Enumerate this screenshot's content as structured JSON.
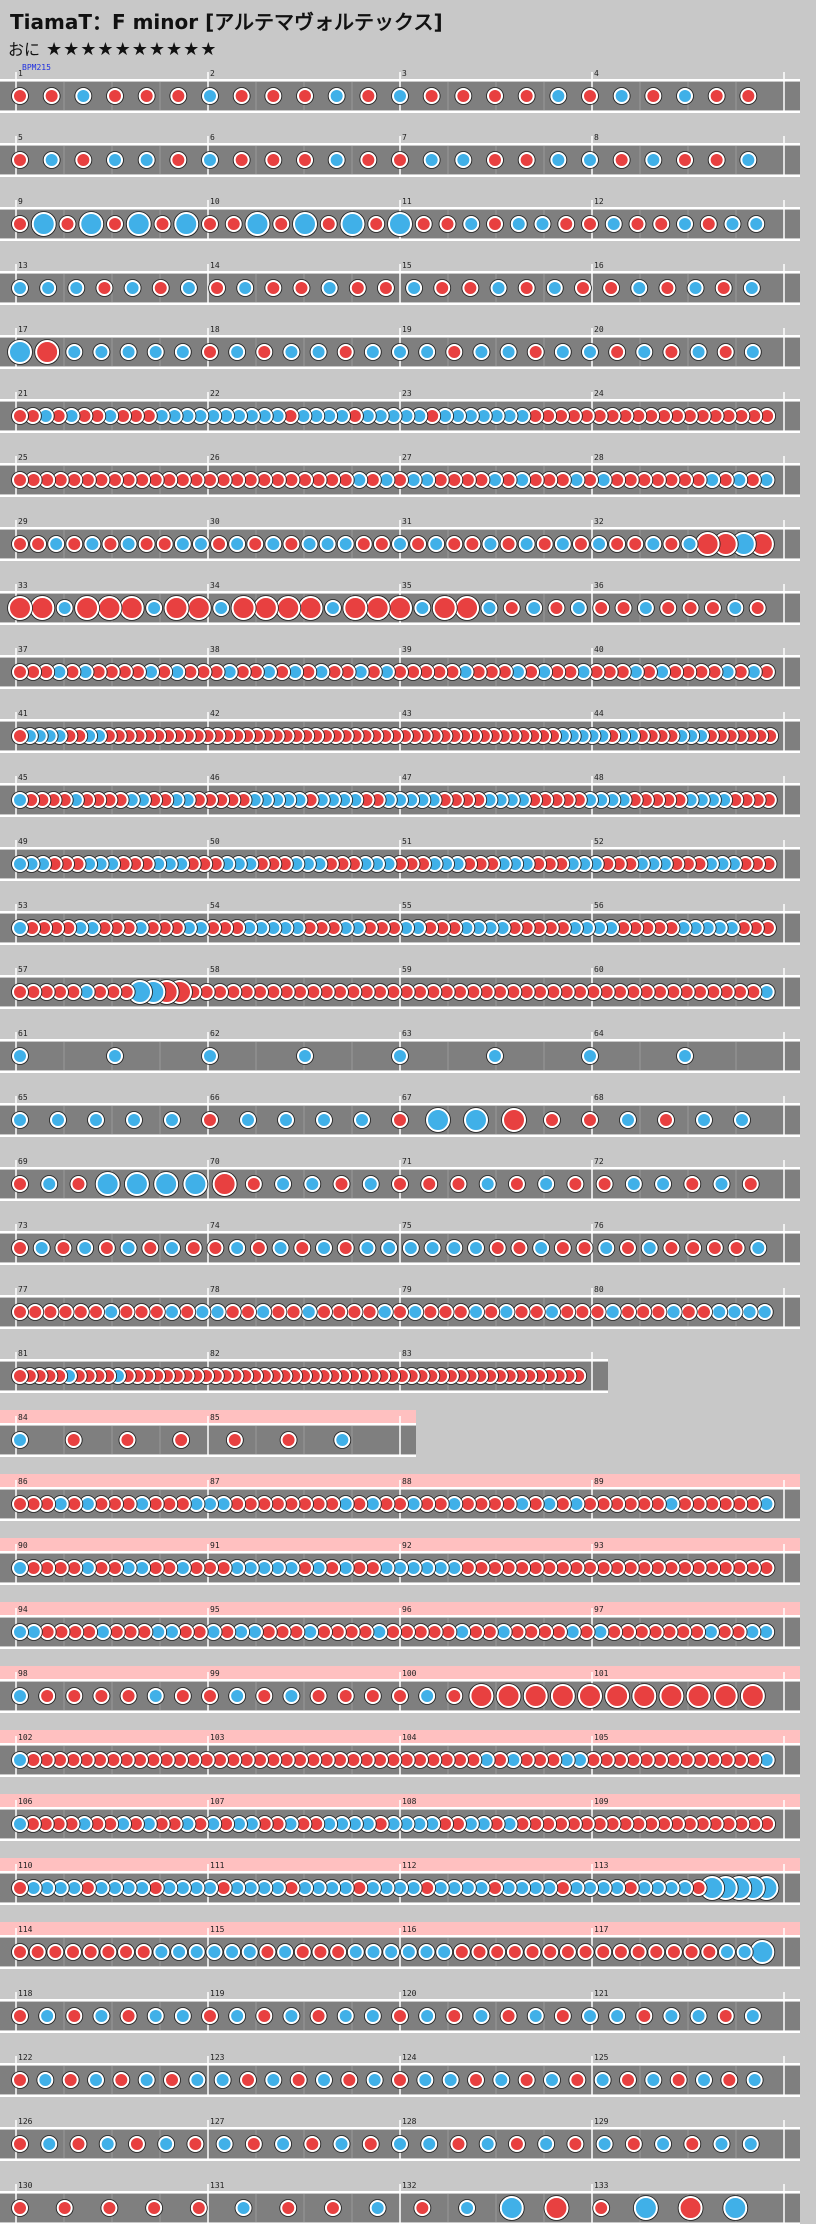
{
  "title": "TiamaT：F minor [アルテマヴォルテックス]",
  "difficulty": {
    "label": "おに",
    "stars": "★★★★★★★★★★"
  },
  "bpm_label": "BPM215",
  "colors": {
    "don": "#e84040",
    "ka": "#40b0e8",
    "lane": "#7f7f7f",
    "gogo": "#ffc0c0",
    "bg": "#c8c8c8"
  },
  "rows": [
    {
      "notes": "r r b r r r b r r r b r b r r r r b r b r b r r",
      "measure_numbers": [
        1,
        2,
        3,
        4
      ]
    },
    {
      "notes": "r b r b b r b r r r b r r b b r r b b r b r r b",
      "measure_numbers": [
        5,
        6,
        7,
        8
      ]
    },
    {
      "notes": "r B r B r B r B r r B r B r B r B r r b r b b r r b r r b r b b",
      "measure_numbers": [
        9,
        10,
        11,
        12
      ]
    },
    {
      "notes": "b b b r b r b r b r r b r r b r r b r b r r b r b r b",
      "measure_numbers": [
        13,
        14,
        15,
        16
      ]
    },
    {
      "notes": "B R b b b b b r b r b b r b b b r b b r b b r b r b r b",
      "measure_numbers": [
        17,
        18,
        19,
        20
      ]
    },
    {
      "notes": "r r b r b r r b r r r b b b b b b b b b b r b b b b r b b b b b r b b b b b b b r r r r r r r r r r r r r r r r r r r",
      "measure_numbers": [
        21,
        22,
        23,
        24
      ]
    },
    {
      "notes": "r r r r r r r r r r r r r r r r r r r r r r r r r b r b r b b r r r r b r b r r r b r b r r r r r r r b r b r b",
      "measure_numbers": [
        25,
        26,
        27,
        28
      ]
    },
    {
      "notes": "r r b r b r b r r b b r b r b r b b b r r b r b r r b r b r b r b r r b r b R R B R",
      "measure_numbers": [
        29,
        30,
        31,
        32
      ]
    },
    {
      "notes": "R R b R R R b R R b R R R R b R R R b R R b r b r b r r b r r r b r",
      "measure_numbers": [
        33,
        34,
        35,
        36
      ]
    },
    {
      "notes": "r r r b r b r r r r b r b r r r b r r b r b r b r r b r b r r r r r b r r r b r b r r b r r r b r b r r r r b r b r",
      "measure_numbers": [
        37,
        38,
        39,
        40
      ]
    },
    {
      "notes": "r b b b b r r b b r r r r r r r r r r r r r r r r r r r r r r r r r r r r r r r r r r r r r r r r r r r r r r b b b b b r b b r r r r b b b r r r r r r r",
      "measure_numbers": [
        41,
        42,
        43,
        44
      ]
    },
    {
      "notes": "b r r r r b r r r r b b r r b b r r r r r b b b b b r b b b b r r b b b b b r r r r b b b b r r r r r b b b b r r r r r b b b b r r r r",
      "measure_numbers": [
        45,
        46,
        47,
        48
      ]
    },
    {
      "notes": "b b b r r r b b b r r r b b b r r r b b b r r r b b b r r r b b b r r r b b b r r r b b b r r r b b b r r r b b b r r r b b b r r r",
      "measure_numbers": [
        49,
        50,
        51,
        52
      ]
    },
    {
      "notes": "b r r r r b b r r r b r r r b b r r r b b b b b r r r b b r r r b b r r r b b b b r r r r r b b b b r r r r r b b b b b r r r",
      "measure_numbers": [
        53,
        54,
        55,
        56
      ]
    },
    {
      "notes": "r r r r r b r r r B B R R r r r r r r r r r r r r r r r r r r r r r r r r r r r r r r r r r r r r r r r r r r r b",
      "measure_numbers": [
        57,
        58,
        59,
        60
      ]
    },
    {
      "notes": "b b b b b b b b",
      "measure_numbers": [
        61,
        62,
        63,
        64
      ]
    },
    {
      "notes": "b b b b b r b b b b r B B R r r b r b b",
      "measure_numbers": [
        65,
        66,
        67,
        68
      ]
    },
    {
      "notes": "r b r B B B B R r b b r b r r r b r b r r b b r b r",
      "measure_numbers": [
        69,
        70,
        71,
        72
      ]
    },
    {
      "notes": "r b r b r b r b r r b r b r b r b b b b b b r r b r r b r b r r r r b",
      "measure_numbers": [
        73,
        74,
        75,
        76
      ]
    },
    {
      "notes": "r r r r r r b r r r b r b b r r b r r b r r r r b r b r r r b r b r r b r r r b r r r b r r b b b b",
      "measure_numbers": [
        77,
        78,
        79,
        80
      ]
    },
    {
      "notes": "r r r r r b r r r r b r r r r r r r r r r r r r r r r r r r r r r r r r r r r r r r r r r r r r r r r r r r r r r r",
      "measure_numbers": [
        81,
        82,
        83
      ]
    },
    {
      "notes": "b r r r r r b",
      "measure_numbers": [
        84,
        85
      ],
      "gogo": true
    },
    {
      "notes": "r r r b r b r r r b r r r b b b r r r r r r r r b r b r r b r r b r r r r b r b r b r r r r r r b r r r r r r b",
      "measure_numbers": [
        86,
        87,
        88,
        89
      ],
      "gogo": true
    },
    {
      "notes": "b r r r r b r r b b r r b r r r b b b b b r b r b r r b b b b b b r r r r r r r r r r r r r r r r r r r r r r r",
      "measure_numbers": [
        90,
        91,
        92,
        93
      ],
      "gogo": true
    },
    {
      "notes": "b b r r r r b r r r b b r r b r b b r r r b r r r r b r r r r r b r r b r r r r b r b r r r r r r r b r r b b",
      "measure_numbers": [
        94,
        95,
        96,
        97
      ],
      "gogo": true
    },
    {
      "notes": "b r r r r b r r b r b r r r r b r R R R R R R R R R R R",
      "measure_numbers": [
        98,
        99,
        100,
        101
      ],
      "gogo": true
    },
    {
      "notes": "b r r r r r r r r r r r r r r r r r r r r r r r r r r r r r r r r r r b r b r r r b b r r r r r r r r r r r r r b",
      "measure_numbers": [
        102,
        103,
        104,
        105
      ],
      "gogo": true
    },
    {
      "notes": "b r r r r b r r b r b r r b r b r b b r r b r r b b b b r b b b b r r b b r b r r r r r r r r r r r r r r r r r r r r",
      "measure_numbers": [
        106,
        107,
        108,
        109
      ],
      "gogo": true
    },
    {
      "notes": "r b b b b r b b b b r b b b b r b b b b r b b b b r b b b b r b b b b r b b b b r b b b b r b b b b r B B B B B",
      "measure_numbers": [
        110,
        111,
        112,
        113
      ],
      "gogo": true
    },
    {
      "notes": "r r r r r r r r b b b b b b r b r r r b b b b b b r r r r r r r r r r r r r r r b b B",
      "measure_numbers": [
        114,
        115,
        116,
        117
      ],
      "gogo": true
    },
    {
      "notes": "r b r b r b b r b r b r b b r b r b r b r b b r b b r b",
      "measure_numbers": [
        118,
        119,
        120,
        121
      ]
    },
    {
      "notes": "r b r b r b r b b r b r b r b r b b r b r b r b r b r b r b",
      "measure_numbers": [
        122,
        123,
        124,
        125
      ]
    },
    {
      "notes": "r b r b r b r b r b r b r b b r b r b r b r b r b b",
      "measure_numbers": [
        126,
        127,
        128,
        129
      ]
    },
    {
      "notes": "r r r r r b r r b r b B R r B R B",
      "measure_numbers": [
        130,
        131,
        132,
        133
      ]
    }
  ]
}
